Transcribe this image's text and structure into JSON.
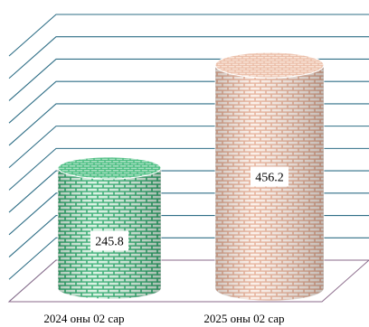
{
  "chart_data": {
    "type": "bar",
    "style": "3d-cylinder",
    "categories": [
      "2024 оны 02 сар",
      "2025 оны 02 сар"
    ],
    "values": [
      245.8,
      456.2
    ],
    "value_labels": [
      "245.8",
      "456.2"
    ],
    "title": "",
    "xlabel": "",
    "ylabel": "",
    "ylim": [
      0,
      550
    ],
    "grid": true,
    "legend": "none",
    "colors": {
      "series_0_fill": "#2aa86a",
      "series_0_brick": "#d7f3e2",
      "series_0_top": "#6cc693",
      "series_1_fill": "#e9b9a2",
      "series_1_brick": "#fbeee6",
      "series_1_top": "#f1cdb9",
      "gridline": "#2e6e86",
      "floor": "#8a6a8a"
    }
  }
}
